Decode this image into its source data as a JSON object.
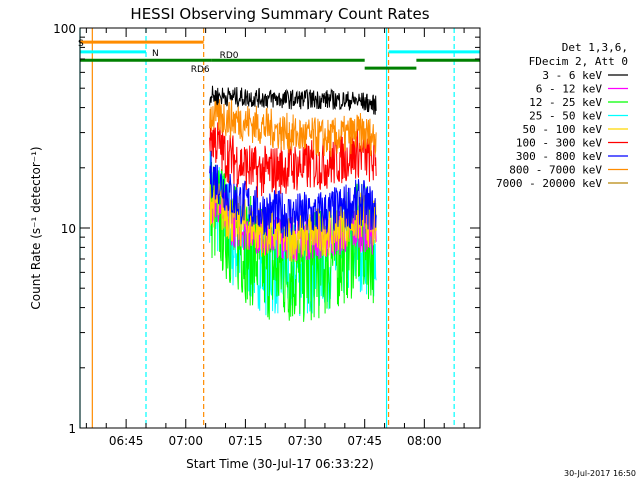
{
  "chart_data": {
    "type": "line",
    "title": "HESSI Observing Summary Count Rates",
    "xlabel": "Start Time (30-Jul-17 06:33:22)",
    "ylabel": "Count Rate (s⁻¹ detector⁻¹)",
    "x_ticks": [
      "06:45",
      "07:00",
      "07:15",
      "07:30",
      "07:45",
      "08:00"
    ],
    "x_tick_minutes": [
      45,
      60,
      75,
      90,
      105,
      120
    ],
    "xlim_minutes": [
      33.4,
      134
    ],
    "y_scale": "log",
    "ylim": [
      1,
      100
    ],
    "y_ticks": [
      "1",
      "10",
      "100"
    ],
    "legend_header": [
      "Det 1,3,6,",
      "FDecim 2, Att 0"
    ],
    "legend_position": "right",
    "series": [
      {
        "name": "3 - 6 keV",
        "color": "#000000",
        "x": [
          66,
          75,
          85,
          95,
          104,
          108
        ],
        "y": [
          46,
          45,
          44,
          44,
          43,
          41
        ]
      },
      {
        "name": "6 - 12 keV",
        "color": "#ff00ff",
        "x": [
          66,
          72,
          80,
          88,
          96,
          104,
          108
        ],
        "y": [
          14,
          10.5,
          9.5,
          9,
          9.2,
          10,
          9.3
        ]
      },
      {
        "name": "12 - 25 keV",
        "color": "#00ff00",
        "x": [
          66,
          72,
          80,
          88,
          96,
          104,
          108
        ],
        "y": [
          13,
          9,
          6.5,
          6,
          6.8,
          9,
          7.5
        ]
      },
      {
        "name": "25 - 50 keV",
        "color": "#00ffff",
        "x": [
          66,
          72,
          80,
          88,
          96,
          104,
          108
        ],
        "y": [
          15,
          8.5,
          6.5,
          6.2,
          7,
          8.5,
          7.5
        ]
      },
      {
        "name": "50 - 100 keV",
        "color": "#ffd700",
        "x": [
          66,
          72,
          80,
          88,
          96,
          104,
          108
        ],
        "y": [
          14,
          11,
          9.5,
          9,
          9.8,
          11.5,
          10
        ]
      },
      {
        "name": "100 - 300 keV",
        "color": "#ff0000",
        "x": [
          66,
          70,
          78,
          86,
          96,
          104,
          108
        ],
        "y": [
          30,
          23,
          19,
          20,
          21,
          24,
          21
        ]
      },
      {
        "name": "300 - 800 keV",
        "color": "#0000ff",
        "x": [
          66,
          72,
          80,
          88,
          96,
          104,
          108
        ],
        "y": [
          19,
          14,
          12,
          11.5,
          12,
          13.5,
          12
        ]
      },
      {
        "name": "800 - 7000 keV",
        "color": "#ff8c00",
        "x": [
          66,
          72,
          80,
          88,
          96,
          104,
          108
        ],
        "y": [
          37,
          35,
          32,
          29,
          28,
          30,
          28
        ]
      },
      {
        "name": "7000 - 20000 keV",
        "color": "#b8860b",
        "x": [],
        "y": []
      }
    ],
    "state_bars": [
      {
        "label": "S",
        "color": "#ff8c00",
        "x": [
          33.4,
          64.5
        ],
        "y": 85
      },
      {
        "label": "N",
        "color": "#00ffff",
        "x": [
          33.4,
          50
        ],
        "y": 76
      },
      {
        "label": "",
        "color": "#00ffff",
        "x": [
          111,
          134
        ],
        "y": 76
      },
      {
        "label": "RD6",
        "color": "#008000",
        "x": [
          33.4,
          66.5
        ],
        "y": 69
      },
      {
        "label": "RD0",
        "color": "#008000",
        "x": [
          66.5,
          105
        ],
        "y": 69
      },
      {
        "label": "",
        "color": "#008000",
        "x": [
          105,
          118
        ],
        "y": 63
      },
      {
        "label": "",
        "color": "#008000",
        "x": [
          118,
          134
        ],
        "y": 69
      }
    ],
    "vertical_lines": [
      {
        "x": 33.4,
        "color": "#00ffff",
        "style": "solid"
      },
      {
        "x": 36.5,
        "color": "#ff8c00",
        "style": "solid"
      },
      {
        "x": 50,
        "color": "#00ffff",
        "style": "dashed"
      },
      {
        "x": 64.5,
        "color": "#ff8c00",
        "style": "dashed"
      },
      {
        "x": 110.5,
        "color": "#00ffff",
        "style": "solid"
      },
      {
        "x": 111,
        "color": "#ff8c00",
        "style": "dashed"
      },
      {
        "x": 127.5,
        "color": "#00ffff",
        "style": "dashed"
      }
    ],
    "grid": false
  },
  "footer": {
    "timestamp": "30-Jul-2017 16:50"
  }
}
